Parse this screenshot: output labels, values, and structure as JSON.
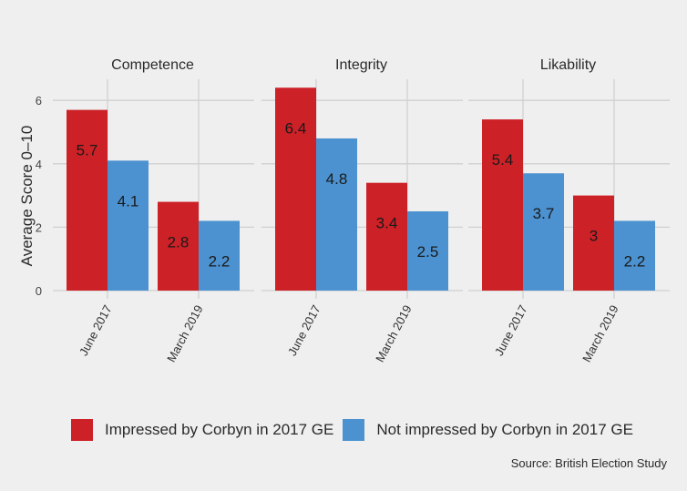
{
  "chart_data": {
    "type": "bar",
    "ylabel": "Average Score 0–10",
    "ylim": [
      0,
      6.6
    ],
    "yticks": [
      0,
      2,
      4,
      6
    ],
    "grid": true,
    "categories": [
      "June 2017",
      "March 2019"
    ],
    "legend_position": "bottom",
    "series": [
      {
        "name": "Impressed by Corbyn in 2017 GE",
        "color": "#cc2127"
      },
      {
        "name": "Not impressed by Corbyn in 2017 GE",
        "color": "#4c92d0"
      }
    ],
    "panels": [
      {
        "title": "Competence",
        "values": [
          [
            5.7,
            2.8
          ],
          [
            4.1,
            2.2
          ]
        ],
        "labels": [
          [
            "5.7",
            "2.8"
          ],
          [
            "4.1",
            "2.2"
          ]
        ]
      },
      {
        "title": "Integrity",
        "values": [
          [
            6.4,
            3.4
          ],
          [
            4.8,
            2.5
          ]
        ],
        "labels": [
          [
            "6.4",
            "3.4"
          ],
          [
            "4.8",
            "2.5"
          ]
        ]
      },
      {
        "title": "Likability",
        "values": [
          [
            5.4,
            3.0
          ],
          [
            3.7,
            2.2
          ]
        ],
        "labels": [
          [
            "5.4",
            "3"
          ],
          [
            "3.7",
            "2.2"
          ]
        ]
      }
    ]
  },
  "legend": {
    "items": [
      {
        "label": "Impressed by Corbyn in 2017 GE",
        "color": "#cc2127"
      },
      {
        "label": "Not impressed by Corbyn in 2017 GE",
        "color": "#4c92d0"
      }
    ]
  },
  "source": "Source: British Election Study"
}
